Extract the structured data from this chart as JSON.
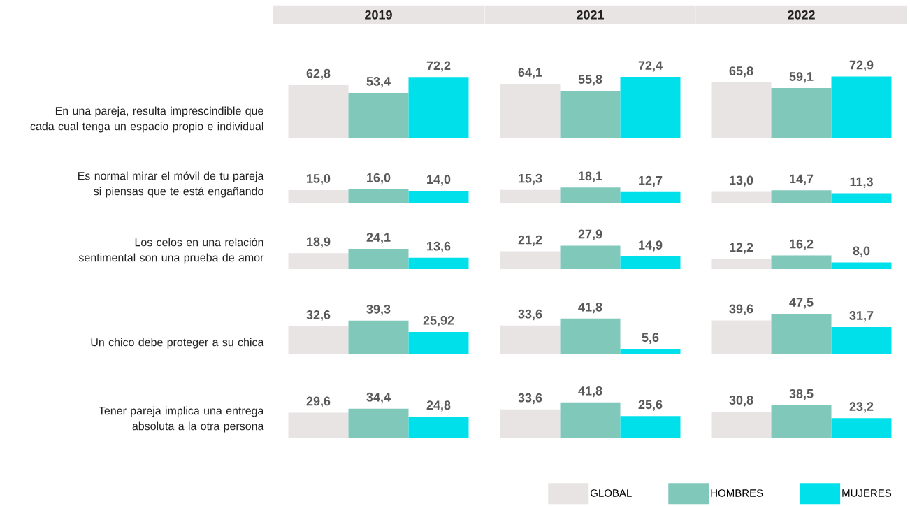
{
  "chart_data": [
    {
      "type": "bar",
      "title": "2019",
      "ylabel": "En una pareja, resulta imprescindible que cada cual tenga un espacio propio e individual",
      "categories": [
        null
      ],
      "series": [
        {
          "color": "#e7e4e3",
          "values": [
            62.8
          ],
          "value_labels": [
            "62,8"
          ]
        },
        {
          "color": "#7fc8ba",
          "values": [
            53.4
          ],
          "value_labels": [
            "53,4"
          ]
        },
        {
          "color": "#00e0ea",
          "values": [
            72.2
          ],
          "value_labels": [
            "72,2"
          ]
        }
      ]
    },
    {
      "type": "bar",
      "title": "2021",
      "categories": [
        null
      ],
      "series": [
        {
          "color": "#e7e4e3",
          "values": [
            64.1
          ],
          "value_labels": [
            "64,1"
          ]
        },
        {
          "color": "#7fc8ba",
          "values": [
            55.8
          ],
          "value_labels": [
            "55,8"
          ]
        },
        {
          "color": "#00e0ea",
          "values": [
            72.4
          ],
          "value_labels": [
            "72,4"
          ]
        }
      ]
    },
    {
      "type": "bar",
      "title": "2022",
      "categories": [
        null
      ],
      "series": [
        {
          "color": "#e7e4e3",
          "values": [
            65.8
          ],
          "value_labels": [
            "65,8"
          ]
        },
        {
          "color": "#7fc8ba",
          "values": [
            59.1
          ],
          "value_labels": [
            "59,1"
          ]
        },
        {
          "color": "#00e0ea",
          "values": [
            72.9
          ],
          "value_labels": [
            "72,9"
          ]
        }
      ]
    },
    {
      "type": "bar",
      "ylabel": "Es normal mirar el móvil de tu pareja si piensas que te está engañando",
      "categories": [
        null
      ],
      "series": [
        {
          "color": "#e7e4e3",
          "values": [
            15.0
          ],
          "value_labels": [
            "15,0"
          ]
        },
        {
          "color": "#7fc8ba",
          "values": [
            16.0
          ],
          "value_labels": [
            "16,0"
          ]
        },
        {
          "color": "#00e0ea",
          "values": [
            14.0
          ],
          "value_labels": [
            "14,0"
          ]
        }
      ]
    },
    {
      "type": "bar",
      "categories": [
        null
      ],
      "series": [
        {
          "color": "#e7e4e3",
          "values": [
            15.3
          ],
          "value_labels": [
            "15,3"
          ]
        },
        {
          "color": "#7fc8ba",
          "values": [
            18.1
          ],
          "value_labels": [
            "18,1"
          ]
        },
        {
          "color": "#00e0ea",
          "values": [
            12.7
          ],
          "value_labels": [
            "12,7"
          ]
        }
      ]
    },
    {
      "type": "bar",
      "categories": [
        null
      ],
      "series": [
        {
          "color": "#e7e4e3",
          "values": [
            13.0
          ],
          "value_labels": [
            "13,0"
          ]
        },
        {
          "color": "#7fc8ba",
          "values": [
            14.7
          ],
          "value_labels": [
            "14,7"
          ]
        },
        {
          "color": "#00e0ea",
          "values": [
            11.3
          ],
          "value_labels": [
            "11,3"
          ]
        }
      ]
    },
    {
      "type": "bar",
      "ylabel": "Los celos en una relación sentimental son una prueba de amor",
      "categories": [
        null
      ],
      "series": [
        {
          "color": "#e7e4e3",
          "values": [
            18.9
          ],
          "value_labels": [
            "18,9"
          ]
        },
        {
          "color": "#7fc8ba",
          "values": [
            24.1
          ],
          "value_labels": [
            "24,1"
          ]
        },
        {
          "color": "#00e0ea",
          "values": [
            13.6
          ],
          "value_labels": [
            "13,6"
          ]
        }
      ]
    },
    {
      "type": "bar",
      "categories": [
        null
      ],
      "series": [
        {
          "color": "#e7e4e3",
          "values": [
            21.2
          ],
          "value_labels": [
            "21,2"
          ]
        },
        {
          "color": "#7fc8ba",
          "values": [
            27.9
          ],
          "value_labels": [
            "27,9"
          ]
        },
        {
          "color": "#00e0ea",
          "values": [
            14.9
          ],
          "value_labels": [
            "14,9"
          ]
        }
      ]
    },
    {
      "type": "bar",
      "categories": [
        null
      ],
      "series": [
        {
          "color": "#e7e4e3",
          "values": [
            12.2
          ],
          "value_labels": [
            "12,2"
          ]
        },
        {
          "color": "#7fc8ba",
          "values": [
            16.2
          ],
          "value_labels": [
            "16,2"
          ]
        },
        {
          "color": "#00e0ea",
          "values": [
            8.0
          ],
          "value_labels": [
            "8,0"
          ]
        }
      ]
    },
    {
      "type": "bar",
      "ylabel": "Un chico debe proteger a su chica",
      "categories": [
        null
      ],
      "series": [
        {
          "color": "#e7e4e3",
          "values": [
            32.6
          ],
          "value_labels": [
            "32,6"
          ]
        },
        {
          "color": "#7fc8ba",
          "values": [
            39.3
          ],
          "value_labels": [
            "39,3"
          ]
        },
        {
          "color": "#00e0ea",
          "values": [
            25.92
          ],
          "value_labels": [
            "25,92"
          ]
        }
      ]
    },
    {
      "type": "bar",
      "categories": [
        null
      ],
      "series": [
        {
          "color": "#e7e4e3",
          "values": [
            33.6
          ],
          "value_labels": [
            "33,6"
          ]
        },
        {
          "color": "#7fc8ba",
          "values": [
            41.8
          ],
          "value_labels": [
            "41,8"
          ]
        },
        {
          "color": "#00e0ea",
          "values": [
            5.6
          ],
          "value_labels": [
            "5,6"
          ]
        }
      ]
    },
    {
      "type": "bar",
      "categories": [
        null
      ],
      "series": [
        {
          "color": "#e7e4e3",
          "values": [
            39.6
          ],
          "value_labels": [
            "39,6"
          ]
        },
        {
          "color": "#7fc8ba",
          "values": [
            47.5
          ],
          "value_labels": [
            "47,5"
          ]
        },
        {
          "color": "#00e0ea",
          "values": [
            31.7
          ],
          "value_labels": [
            "31,7"
          ]
        }
      ]
    },
    {
      "type": "bar",
      "ylabel": "Tener pareja implica una entrega absoluta a la otra persona",
      "categories": [
        null
      ],
      "series": [
        {
          "color": "#e7e4e3",
          "values": [
            29.6
          ],
          "value_labels": [
            "29,6"
          ]
        },
        {
          "color": "#7fc8ba",
          "values": [
            34.4
          ],
          "value_labels": [
            "34,4"
          ]
        },
        {
          "color": "#00e0ea",
          "values": [
            24.8
          ],
          "value_labels": [
            "24,8"
          ]
        }
      ]
    },
    {
      "type": "bar",
      "categories": [
        null
      ],
      "series": [
        {
          "color": "#e7e4e3",
          "values": [
            33.6
          ],
          "value_labels": [
            "33,6"
          ]
        },
        {
          "color": "#7fc8ba",
          "values": [
            41.8
          ],
          "value_labels": [
            "41,8"
          ]
        },
        {
          "color": "#00e0ea",
          "values": [
            25.6
          ],
          "value_labels": [
            "25,6"
          ]
        }
      ]
    },
    {
      "type": "bar",
      "legend": "bottom",
      "categories": [
        null
      ],
      "series": [
        {
          "name": "GLOBAL",
          "color": "#e7e4e3",
          "values": [
            30.8
          ],
          "value_labels": [
            "30,8"
          ]
        },
        {
          "name": "HOMBRES",
          "color": "#7fc8ba",
          "values": [
            38.5
          ],
          "value_labels": [
            "38,5"
          ]
        },
        {
          "name": "MUJERES",
          "color": "#00e0ea",
          "values": [
            23.2
          ],
          "value_labels": [
            "23,2"
          ]
        }
      ]
    }
  ]
}
